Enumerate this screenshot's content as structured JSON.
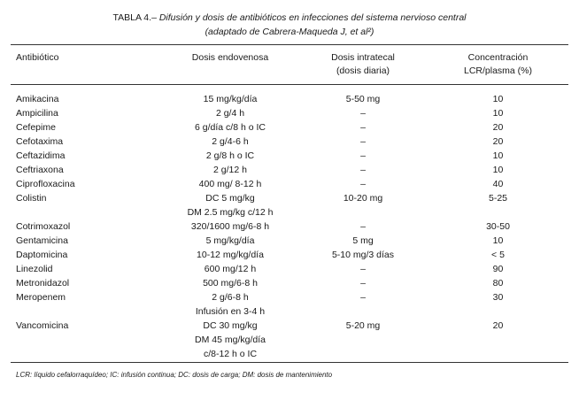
{
  "caption": {
    "label": "TABLA 4.–",
    "title": "Difusión y dosis de antibióticos en infecciones del sistema nervioso central",
    "subtitle": "(adaptado de Cabrera-Maqueda J, et al²)"
  },
  "table": {
    "headers": {
      "antibiotic": "Antibiótico",
      "dose": "Dosis endovenosa",
      "intrathecal_1": "Dosis intratecal",
      "intrathecal_2": "(dosis diaria)",
      "conc_1": "Concentración",
      "conc_2": "LCR/plasma (%)"
    },
    "rows": [
      {
        "antibiotic": "Amikacina",
        "dose": [
          "15 mg/kg/día"
        ],
        "intrathecal": "5-50 mg",
        "concentration": "10"
      },
      {
        "antibiotic": "Ampicilina",
        "dose": [
          "2 g/4 h"
        ],
        "intrathecal": "–",
        "concentration": "10"
      },
      {
        "antibiotic": "Cefepime",
        "dose": [
          "6 g/día c/8 h o IC"
        ],
        "intrathecal": "–",
        "concentration": "20"
      },
      {
        "antibiotic": "Cefotaxima",
        "dose": [
          "2 g/4-6 h"
        ],
        "intrathecal": "–",
        "concentration": "20"
      },
      {
        "antibiotic": "Ceftazidima",
        "dose": [
          "2 g/8 h o IC"
        ],
        "intrathecal": "–",
        "concentration": "10"
      },
      {
        "antibiotic": "Ceftriaxona",
        "dose": [
          "2 g/12 h"
        ],
        "intrathecal": "–",
        "concentration": "10"
      },
      {
        "antibiotic": "Ciprofloxacina",
        "dose": [
          "400 mg/ 8-12 h"
        ],
        "intrathecal": "–",
        "concentration": "40"
      },
      {
        "antibiotic": "Colistin",
        "dose": [
          "DC 5 mg/kg",
          "DM 2.5 mg/kg c/12 h"
        ],
        "intrathecal": "10-20 mg",
        "concentration": "5-25"
      },
      {
        "antibiotic": "Cotrimoxazol",
        "dose": [
          "320/1600 mg/6-8 h"
        ],
        "intrathecal": "–",
        "concentration": "30-50"
      },
      {
        "antibiotic": "Gentamicina",
        "dose": [
          "5 mg/kg/día"
        ],
        "intrathecal": "5 mg",
        "concentration": "10"
      },
      {
        "antibiotic": "Daptomicina",
        "dose": [
          "10-12 mg/kg/día"
        ],
        "intrathecal": "5-10 mg/3 días",
        "concentration": "< 5"
      },
      {
        "antibiotic": "Linezolid",
        "dose": [
          "600 mg/12 h"
        ],
        "intrathecal": "–",
        "concentration": "90"
      },
      {
        "antibiotic": "Metronidazol",
        "dose": [
          "500 mg/6-8 h"
        ],
        "intrathecal": "–",
        "concentration": "80"
      },
      {
        "antibiotic": "Meropenem",
        "dose": [
          "2 g/6-8 h",
          "Infusión en 3-4 h"
        ],
        "intrathecal": "–",
        "concentration": "30"
      },
      {
        "antibiotic": "Vancomicina",
        "dose": [
          "DC 30 mg/kg",
          "DM 45 mg/kg/día",
          "c/8-12 h o IC"
        ],
        "intrathecal": "5-20 mg",
        "concentration": "20"
      }
    ]
  },
  "footnote": "LCR: líquido cefalorraquídeo; IC: infusión continua; DC: dosis de carga; DM: dosis de mantenimiento"
}
